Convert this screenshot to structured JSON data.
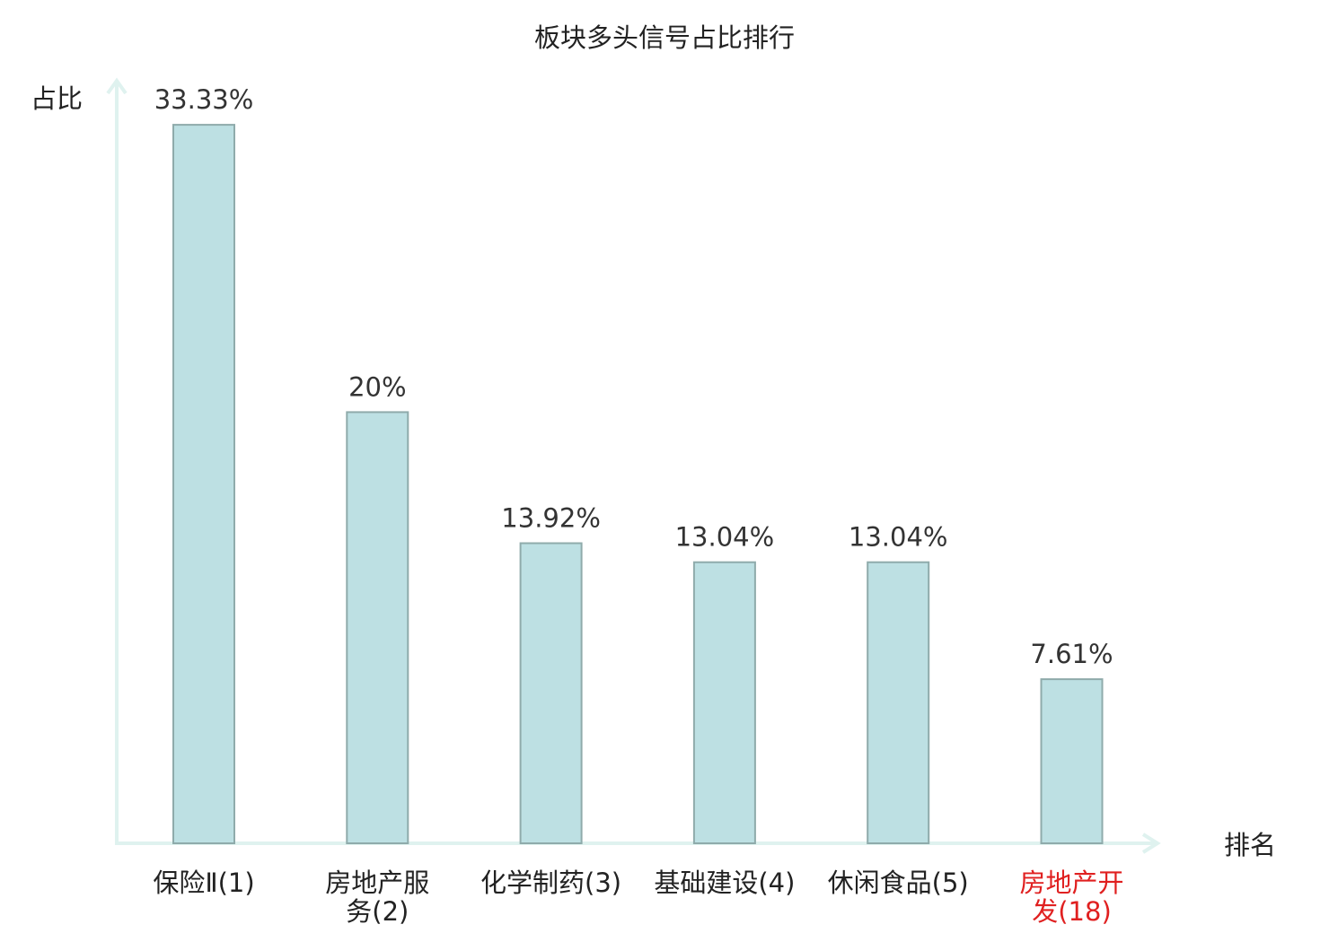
{
  "chart_data": {
    "type": "bar",
    "title": "板块多头信号占比排行",
    "ylabel": "占比",
    "xlabel": "排名",
    "categories": [
      "保险Ⅱ(1)",
      "房地产服务(2)",
      "化学制药(3)",
      "基础建设(4)",
      "休闲食品(5)",
      "房地产开发(18)"
    ],
    "category_lines": [
      [
        "保险Ⅱ(1)"
      ],
      [
        "房地产服",
        "务(2)"
      ],
      [
        "化学制药(3)"
      ],
      [
        "基础建设(4)"
      ],
      [
        "休闲食品(5)"
      ],
      [
        "房地产开",
        "发(18)"
      ]
    ],
    "values": [
      33.33,
      20,
      13.92,
      13.04,
      13.04,
      7.61
    ],
    "value_labels": [
      "33.33%",
      "20%",
      "13.92%",
      "13.04%",
      "13.04%",
      "7.61%"
    ],
    "highlight": [
      false,
      false,
      false,
      false,
      false,
      true
    ],
    "ylim": [
      0,
      34.5
    ],
    "grid": false,
    "legend": "none",
    "colors": {
      "bar_fill": "#bde0e3",
      "bar_stroke": "#8fabab",
      "axis": "#dff2ef",
      "highlight_label": "#e02020",
      "label": "#222222"
    }
  }
}
